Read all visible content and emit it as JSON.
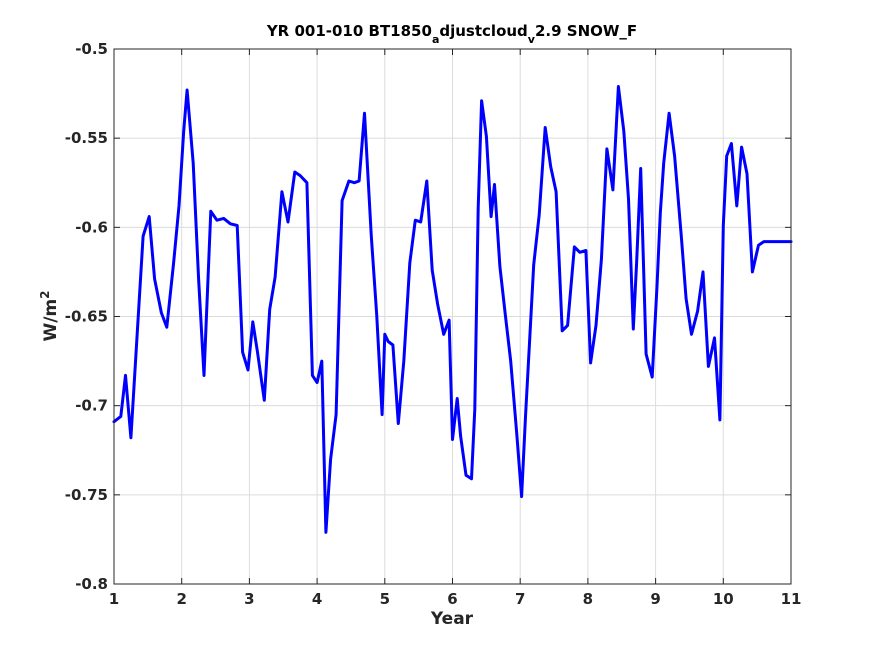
{
  "chart_data": {
    "type": "line",
    "title": {
      "part1": "YR 001-010 BT1850",
      "sub1": "a",
      "part2": "djustcloud",
      "sub2": "v",
      "part3": "2.9 SNOW_F"
    },
    "xlabel": "Year",
    "ylabel": {
      "base": "W/m",
      "sup": "2"
    },
    "xlim": [
      1,
      11
    ],
    "ylim": [
      -0.8,
      -0.5
    ],
    "xticks": [
      1,
      2,
      3,
      4,
      5,
      6,
      7,
      8,
      9,
      10,
      11
    ],
    "xtick_labels": [
      "1",
      "2",
      "3",
      "4",
      "5",
      "6",
      "7",
      "8",
      "9",
      "10",
      "11"
    ],
    "yticks": [
      -0.8,
      -0.75,
      -0.7,
      -0.65,
      -0.6,
      -0.55,
      -0.5
    ],
    "ytick_labels": [
      "-0.8",
      "-0.75",
      "-0.7",
      "-0.65",
      "-0.6",
      "-0.55",
      "-0.5"
    ],
    "grid": true,
    "line_color": "#0000ff",
    "x": [
      1.0,
      1.1,
      1.17,
      1.25,
      1.33,
      1.43,
      1.52,
      1.6,
      1.7,
      1.78,
      1.88,
      1.96,
      2.03,
      2.08,
      2.17,
      2.25,
      2.33,
      2.43,
      2.52,
      2.62,
      2.72,
      2.82,
      2.9,
      2.98,
      3.05,
      3.12,
      3.22,
      3.3,
      3.38,
      3.48,
      3.57,
      3.67,
      3.75,
      3.85,
      3.93,
      4.0,
      4.07,
      4.13,
      4.2,
      4.28,
      4.37,
      4.47,
      4.55,
      4.62,
      4.7,
      4.8,
      4.88,
      4.96,
      5.0,
      5.05,
      5.12,
      5.2,
      5.28,
      5.37,
      5.45,
      5.53,
      5.62,
      5.7,
      5.78,
      5.87,
      5.95,
      6.0,
      6.07,
      6.12,
      6.2,
      6.28,
      6.33,
      6.38,
      6.43,
      6.5,
      6.57,
      6.62,
      6.7,
      6.78,
      6.86,
      6.95,
      7.02,
      7.08,
      7.13,
      7.2,
      7.28,
      7.37,
      7.45,
      7.53,
      7.62,
      7.7,
      7.8,
      7.88,
      7.97,
      8.04,
      8.12,
      8.2,
      8.28,
      8.37,
      8.45,
      8.53,
      8.6,
      8.67,
      8.72,
      8.78,
      8.86,
      8.95,
      9.02,
      9.07,
      9.12,
      9.2,
      9.28,
      9.38,
      9.45,
      9.53,
      9.62,
      9.7,
      9.78,
      9.87,
      9.95,
      10.0,
      10.05,
      10.12,
      10.2,
      10.27,
      10.35,
      10.43,
      10.52,
      10.6,
      10.67,
      10.75,
      10.83,
      10.92,
      11.0
    ],
    "y": [
      -0.709,
      -0.706,
      -0.683,
      -0.718,
      -0.668,
      -0.605,
      -0.594,
      -0.629,
      -0.648,
      -0.656,
      -0.62,
      -0.588,
      -0.546,
      -0.523,
      -0.564,
      -0.629,
      -0.683,
      -0.591,
      -0.596,
      -0.595,
      -0.598,
      -0.599,
      -0.67,
      -0.68,
      -0.653,
      -0.67,
      -0.697,
      -0.646,
      -0.628,
      -0.58,
      -0.597,
      -0.569,
      -0.571,
      -0.575,
      -0.683,
      -0.687,
      -0.675,
      -0.771,
      -0.73,
      -0.705,
      -0.585,
      -0.574,
      -0.575,
      -0.574,
      -0.536,
      -0.605,
      -0.649,
      -0.705,
      -0.66,
      -0.664,
      -0.666,
      -0.71,
      -0.675,
      -0.62,
      -0.596,
      -0.597,
      -0.574,
      -0.624,
      -0.643,
      -0.66,
      -0.652,
      -0.719,
      -0.696,
      -0.717,
      -0.739,
      -0.741,
      -0.702,
      -0.589,
      -0.529,
      -0.549,
      -0.594,
      -0.576,
      -0.622,
      -0.649,
      -0.675,
      -0.716,
      -0.751,
      -0.705,
      -0.67,
      -0.621,
      -0.593,
      -0.544,
      -0.566,
      -0.58,
      -0.658,
      -0.655,
      -0.611,
      -0.614,
      -0.613,
      -0.676,
      -0.655,
      -0.618,
      -0.556,
      -0.579,
      -0.521,
      -0.546,
      -0.584,
      -0.657,
      -0.62,
      -0.567,
      -0.671,
      -0.684,
      -0.633,
      -0.592,
      -0.564,
      -0.536,
      -0.56,
      -0.605,
      -0.64,
      -0.66,
      -0.647,
      -0.625,
      -0.678,
      -0.662,
      -0.708,
      -0.599,
      -0.56,
      -0.553,
      -0.588,
      -0.555,
      -0.57,
      -0.625,
      -0.61,
      -0.608,
      -0.608,
      -0.608,
      -0.608,
      -0.608,
      -0.608
    ]
  }
}
